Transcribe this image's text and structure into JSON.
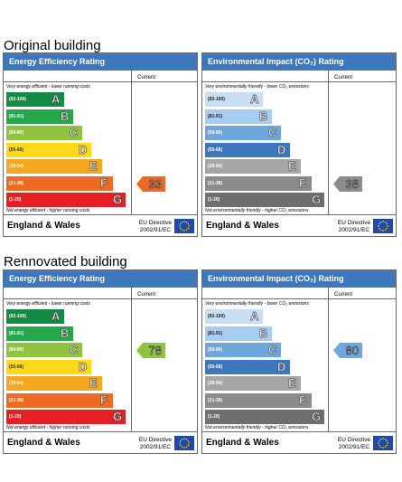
{
  "colors": {
    "header": "#3d78bf",
    "energy_bands": [
      "#158a45",
      "#25a84a",
      "#90c440",
      "#ffd91a",
      "#f3a81f",
      "#ec6a23",
      "#e41f26"
    ],
    "env_bands": [
      "#c7dff4",
      "#a8cdf0",
      "#6ea6de",
      "#3d78bf",
      "#a6a6a6",
      "#8c8c8c",
      "#6e6e6e"
    ]
  },
  "sections": [
    {
      "title": "Original building",
      "panels": [
        {
          "header": "Energy Efficiency Rating",
          "current_label": "Current",
          "top_caption": "Very energy efficient - lower running costs",
          "bottom_caption": "Not energy efficient - higher running costs",
          "bands": [
            {
              "range": "(92-100)",
              "letter": "A"
            },
            {
              "range": "(81-91)",
              "letter": "B"
            },
            {
              "range": "(69-80)",
              "letter": "C"
            },
            {
              "range": "(55-68)",
              "letter": "D"
            },
            {
              "range": "(39-54)",
              "letter": "E"
            },
            {
              "range": "(21-38)",
              "letter": "F"
            },
            {
              "range": "(1-20)",
              "letter": "G"
            }
          ],
          "current_value": "33",
          "current_band": 5,
          "region": "England & Wales",
          "directive_line1": "EU Directive",
          "directive_line2": "2002/91/EC"
        },
        {
          "header": "Environmental Impact (CO₂) Rating",
          "current_label": "Current",
          "top_caption": "Very environmentally friendly - lower CO₂ emissions",
          "bottom_caption": "Not environmentally friendly - higher CO₂ emissions",
          "bands": [
            {
              "range": "(92-100)",
              "letter": "A"
            },
            {
              "range": "(81-91)",
              "letter": "B"
            },
            {
              "range": "(69-80)",
              "letter": "C"
            },
            {
              "range": "(55-68)",
              "letter": "D"
            },
            {
              "range": "(39-54)",
              "letter": "E"
            },
            {
              "range": "(21-38)",
              "letter": "F"
            },
            {
              "range": "(1-20)",
              "letter": "G"
            }
          ],
          "current_value": "38",
          "current_band": 5,
          "region": "England & Wales",
          "directive_line1": "EU Directive",
          "directive_line2": "2002/91/EC"
        }
      ]
    },
    {
      "title": "Rennovated building",
      "panels": [
        {
          "header": "Energy Efficiency Rating",
          "current_label": "Current",
          "top_caption": "Very energy efficient - lower running costs",
          "bottom_caption": "Not energy efficient - higher running costs",
          "bands": [
            {
              "range": "(92-100)",
              "letter": "A"
            },
            {
              "range": "(81-91)",
              "letter": "B"
            },
            {
              "range": "(69-80)",
              "letter": "C"
            },
            {
              "range": "(55-68)",
              "letter": "D"
            },
            {
              "range": "(39-54)",
              "letter": "E"
            },
            {
              "range": "(21-38)",
              "letter": "F"
            },
            {
              "range": "(1-20)",
              "letter": "G"
            }
          ],
          "current_value": "78",
          "current_band": 2,
          "region": "England & Wales",
          "directive_line1": "EU Directive",
          "directive_line2": "2002/91/EC"
        },
        {
          "header": "Environmental Impact (CO₂) Rating",
          "current_label": "Current",
          "top_caption": "Very environmentally friendly - lower CO₂ emissions",
          "bottom_caption": "Not environmentally friendly - higher CO₂ emissions",
          "bands": [
            {
              "range": "(92-100)",
              "letter": "A"
            },
            {
              "range": "(81-91)",
              "letter": "B"
            },
            {
              "range": "(69-80)",
              "letter": "C"
            },
            {
              "range": "(55-68)",
              "letter": "D"
            },
            {
              "range": "(39-54)",
              "letter": "E"
            },
            {
              "range": "(21-38)",
              "letter": "F"
            },
            {
              "range": "(1-20)",
              "letter": "G"
            }
          ],
          "current_value": "80",
          "current_band": 2,
          "region": "England & Wales",
          "directive_line1": "EU Directive",
          "directive_line2": "2002/91/EC"
        }
      ]
    }
  ]
}
